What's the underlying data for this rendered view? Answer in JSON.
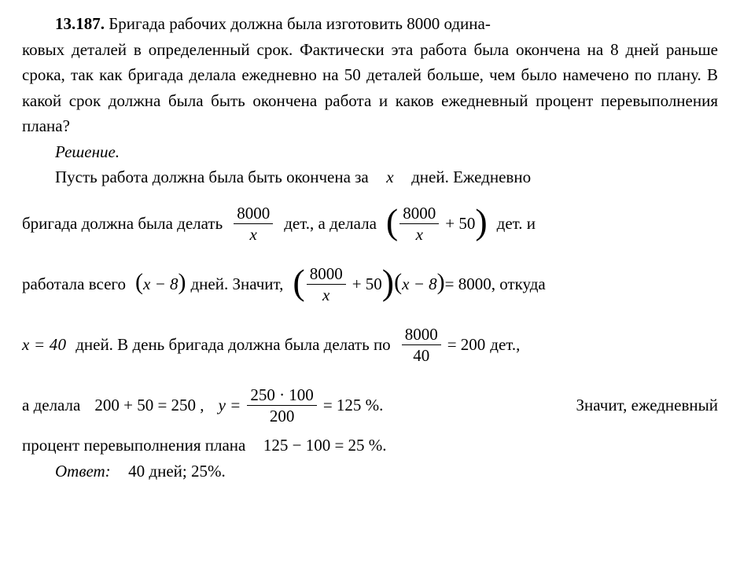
{
  "colors": {
    "text": "#000000",
    "bg": "#ffffff",
    "rule": "#000000"
  },
  "typography": {
    "family": "Times New Roman",
    "size_pt": 16,
    "line_height": 1.55
  },
  "problem": {
    "number": "13.187.",
    "text_head": "Бригада рабочих должна была изготовить 8000 одина-",
    "text_rest": "ковых деталей в определенный срок. Фактически эта работа была окончена на 8 дней раньше срока, так как бригада делала ежеднев­но на 50 деталей больше, чем было намечено по плану. В какой срок должна была быть окончена работа и каков ежедневный процент перевыполнения плана?"
  },
  "solution_label": "Решение.",
  "line_let": "Пусть работа должна была быть окончена за",
  "line_let_tail": "дней. Ежедневно",
  "row1": {
    "lead": "бригада должна была делать",
    "frac1_num": "8000",
    "frac1_den": "x",
    "after_frac1": "дет., а делала",
    "plus_50": "+ 50",
    "tail": "дет. и"
  },
  "row2": {
    "lead": "работала всего",
    "xminus8": "x − 8",
    "mid": "дней. Значит,",
    "eq_rhs": "= 8000",
    "tail": ", откуда"
  },
  "row3": {
    "x_eq": "x = 40",
    "after_x": "дней. В день бригада должна была делать по",
    "frac_num": "8000",
    "frac_den": "40",
    "eq": "= 200",
    "tail": "дет.,"
  },
  "row4": {
    "lead": "а делала",
    "sum": "200 + 50 = 250 ,",
    "y_eq": "y =",
    "frac_num": "250 · 100",
    "frac_den": "200",
    "eq": "= 125 %.",
    "tail": "Значит, ежедневный"
  },
  "row5": {
    "lead": "процент перевыполнения плана",
    "expr": "125 − 100 = 25 %."
  },
  "answer": {
    "label": "Ответ:",
    "text": "40 дней; 25%."
  },
  "variables": {
    "x": "x",
    "y": "y"
  }
}
